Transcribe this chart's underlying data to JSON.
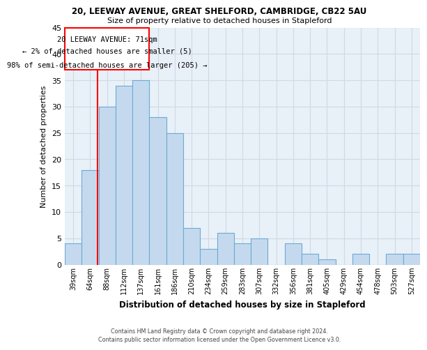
{
  "title_line1": "20, LEEWAY AVENUE, GREAT SHELFORD, CAMBRIDGE, CB22 5AU",
  "title_line2": "Size of property relative to detached houses in Stapleford",
  "xlabel": "Distribution of detached houses by size in Stapleford",
  "ylabel": "Number of detached properties",
  "bar_color": "#c5d9ee",
  "bar_edge_color": "#6aaad4",
  "categories": [
    "39sqm",
    "64sqm",
    "88sqm",
    "112sqm",
    "137sqm",
    "161sqm",
    "186sqm",
    "210sqm",
    "234sqm",
    "259sqm",
    "283sqm",
    "307sqm",
    "332sqm",
    "356sqm",
    "381sqm",
    "405sqm",
    "429sqm",
    "454sqm",
    "478sqm",
    "503sqm",
    "527sqm"
  ],
  "values": [
    4,
    18,
    30,
    34,
    35,
    28,
    25,
    7,
    3,
    6,
    4,
    5,
    0,
    4,
    2,
    1,
    0,
    2,
    0,
    2,
    2
  ],
  "ylim": [
    0,
    45
  ],
  "yticks": [
    0,
    5,
    10,
    15,
    20,
    25,
    30,
    35,
    40,
    45
  ],
  "redline_x": 1.425,
  "annotation_line1": "20 LEEWAY AVENUE: 71sqm",
  "annotation_line2": "← 2% of detached houses are smaller (5)",
  "annotation_line3": "98% of semi-detached houses are larger (205) →",
  "footer_line1": "Contains HM Land Registry data © Crown copyright and database right 2024.",
  "footer_line2": "Contains public sector information licensed under the Open Government Licence v3.0.",
  "background_color": "#ffffff",
  "grid_color": "#d0d8e4"
}
